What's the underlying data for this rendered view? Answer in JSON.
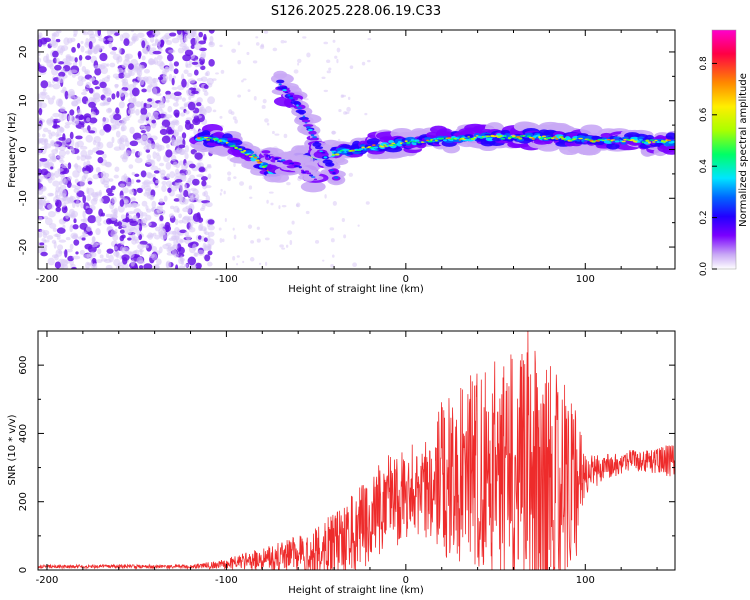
{
  "title": "S126.2025.228.06.19.C33",
  "colors": {
    "background": "#ffffff",
    "axis": "#000000",
    "snr_line": "#ee2b2b",
    "spectrogram_low": "#d7c6f5",
    "spectrogram_mid": "#6a14e6",
    "colormap": [
      "#ffffff",
      "#c9a9f5",
      "#7a00ff",
      "#2200ff",
      "#0066ff",
      "#00e5ff",
      "#00ff66",
      "#aaff00",
      "#ffee00",
      "#ff8800",
      "#ff0044",
      "#ff00cc"
    ]
  },
  "chart_data": [
    {
      "type": "heatmap",
      "name": "spectrogram",
      "xlabel": "Height of straight line (km)",
      "ylabel": "Frequency (Hz)",
      "xlim": [
        -205,
        150
      ],
      "ylim": [
        -24.5,
        24.5
      ],
      "xticks": [
        -200,
        -100,
        0,
        100
      ],
      "xtick_labels": [
        "-200",
        "-100",
        "0",
        "100"
      ],
      "yticks": [
        -20,
        -10,
        0,
        10,
        20
      ],
      "ytick_labels": [
        "-20",
        "-10",
        "0",
        "10",
        "20"
      ],
      "noise_region_x": [
        -205,
        -108
      ],
      "noise_amplitude": 0.1,
      "ridges": [
        {
          "name": "main-band",
          "points": [
            [
              -115,
              2.5
            ],
            [
              -100,
              1.5
            ],
            [
              -85,
              -1.5
            ],
            [
              -75,
              -4.5
            ],
            [
              -65,
              -2.5
            ],
            [
              -50,
              -1.5
            ],
            [
              -35,
              -0.5
            ],
            [
              -20,
              0.5
            ],
            [
              0,
              1.5
            ],
            [
              20,
              2
            ],
            [
              40,
              2.5
            ],
            [
              60,
              2.5
            ],
            [
              80,
              2.5
            ],
            [
              95,
              2
            ],
            [
              110,
              1.8
            ],
            [
              150,
              1.6
            ]
          ],
          "amplitude": 0.6
        },
        {
          "name": "upper-branch",
          "points": [
            [
              -70,
              13.5
            ],
            [
              -60,
              9
            ],
            [
              -52,
              3
            ],
            [
              -45,
              -1.5
            ],
            [
              -38,
              -6.5
            ]
          ],
          "amplitude": 0.35
        },
        {
          "name": "lower-branch",
          "points": [
            [
              -78,
              -1
            ],
            [
              -68,
              -2.5
            ],
            [
              -58,
              -4
            ],
            [
              -50,
              -6
            ]
          ],
          "amplitude": 0.25
        }
      ],
      "colorbar": {
        "label": "Normalized spectral amplitude",
        "range": [
          0,
          0.93
        ],
        "ticks": [
          0,
          0.2,
          0.4,
          0.6,
          0.8
        ],
        "tick_labels": [
          "0.0",
          "0.2",
          "0.4",
          "0.6",
          "0.8"
        ]
      }
    },
    {
      "type": "line",
      "name": "snr",
      "xlabel": "Height of straight line (km)",
      "ylabel": "SNR (10 * v/v)",
      "xlim": [
        -205,
        150
      ],
      "ylim": [
        0,
        700
      ],
      "xticks": [
        -200,
        -100,
        0,
        100
      ],
      "xtick_labels": [
        "-200",
        "-100",
        "0",
        "100"
      ],
      "yticks": [
        0,
        200,
        400,
        600
      ],
      "ytick_labels": [
        "0",
        "200",
        "400",
        "600"
      ],
      "envelope": {
        "x": [
          -205,
          -120,
          -105,
          -90,
          -80,
          -60,
          -45,
          -35,
          -25,
          -10,
          0,
          10,
          15,
          20,
          30,
          40,
          50,
          60,
          70,
          80,
          90,
          95,
          100,
          110,
          125,
          135,
          150
        ],
        "baseline": [
          10,
          10,
          15,
          25,
          30,
          40,
          60,
          80,
          120,
          200,
          220,
          240,
          260,
          270,
          280,
          300,
          300,
          290,
          280,
          270,
          260,
          250,
          280,
          300,
          320,
          320,
          320
        ],
        "amplitude": [
          5,
          6,
          12,
          25,
          35,
          60,
          90,
          110,
          130,
          140,
          140,
          150,
          170,
          230,
          260,
          290,
          320,
          360,
          400,
          360,
          280,
          220,
          60,
          40,
          30,
          35,
          50
        ]
      },
      "peak": {
        "x": 68,
        "y": 705
      }
    }
  ]
}
